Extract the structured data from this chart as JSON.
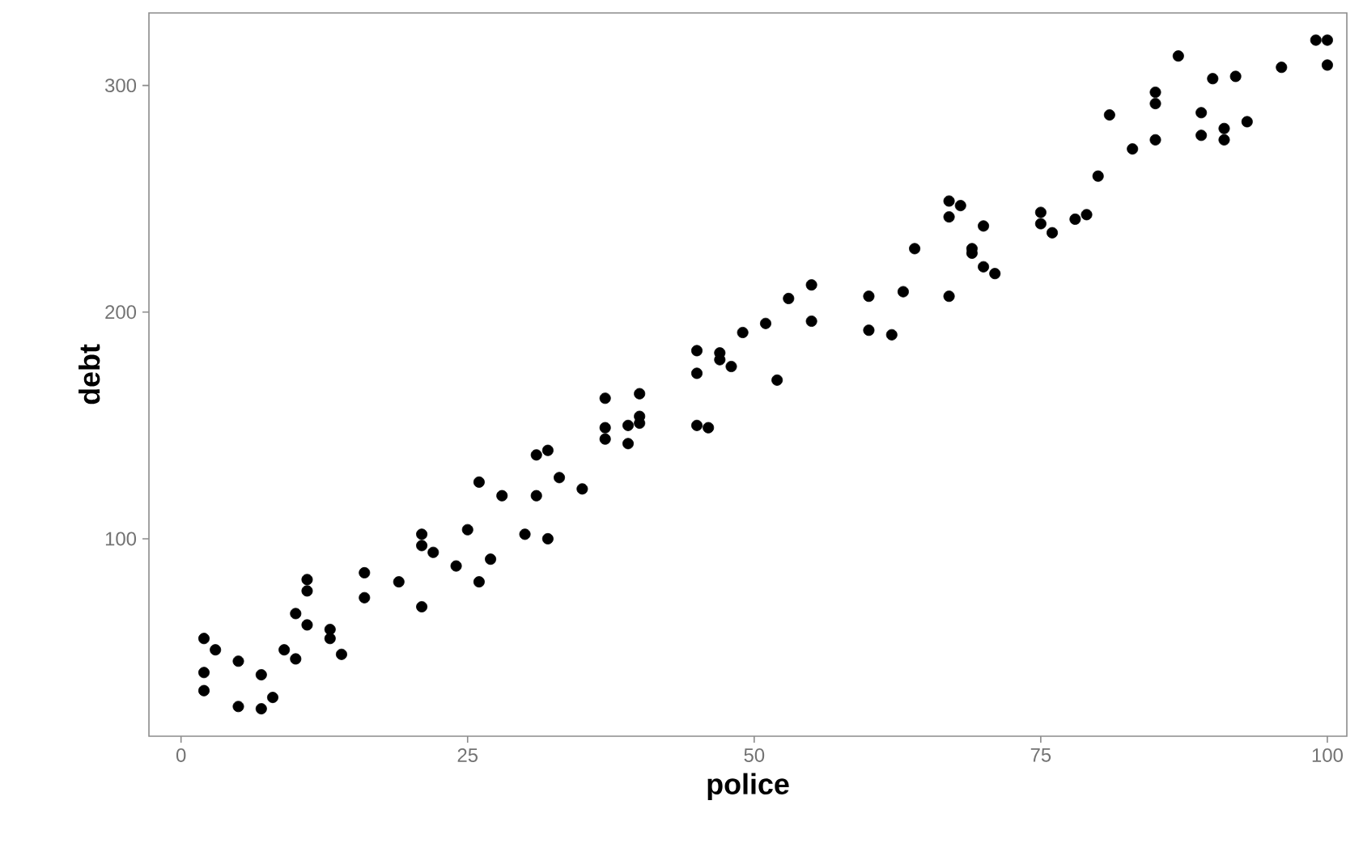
{
  "chart_data": {
    "type": "scatter",
    "xlabel": "**police**",
    "ylabel": "**debt**",
    "color": "#000000",
    "marker": "circle",
    "grid": false,
    "xlim": [
      -2.8,
      101.7
    ],
    "ylim": [
      12.9,
      332
    ],
    "xticks": [
      0,
      25,
      50,
      75,
      100
    ],
    "yticks": [
      100,
      200,
      300
    ],
    "x": [
      2,
      2,
      2,
      3,
      5,
      5,
      7,
      7,
      8,
      9,
      10,
      10,
      11,
      11,
      11,
      13,
      13,
      14,
      16,
      16,
      19,
      21,
      21,
      21,
      22,
      24,
      25,
      26,
      26,
      27,
      28,
      30,
      31,
      31,
      32,
      32,
      33,
      35,
      37,
      37,
      37,
      39,
      39,
      40,
      40,
      40,
      45,
      45,
      45,
      46,
      47,
      47,
      48,
      49,
      51,
      52,
      53,
      55,
      55,
      60,
      60,
      62,
      63,
      64,
      67,
      67,
      67,
      68,
      69,
      69,
      70,
      70,
      71,
      75,
      75,
      76,
      78,
      79,
      80,
      81,
      83,
      85,
      85,
      85,
      87,
      89,
      89,
      90,
      91,
      91,
      92,
      93,
      96,
      99,
      100,
      100
    ],
    "values": [
      56,
      41,
      33,
      51,
      46,
      26,
      40,
      25,
      30,
      51,
      67,
      47,
      82,
      77,
      62,
      60,
      56,
      49,
      85,
      74,
      81,
      102,
      97,
      70,
      94,
      88,
      104,
      125,
      81,
      91,
      119,
      102,
      137,
      119,
      139,
      100,
      127,
      122,
      162,
      149,
      144,
      150,
      142,
      164,
      154,
      151,
      183,
      173,
      150,
      149,
      182,
      179,
      176,
      191,
      195,
      170,
      206,
      212,
      196,
      207,
      192,
      190,
      209,
      228,
      249,
      242,
      207,
      247,
      228,
      226,
      238,
      220,
      217,
      244,
      239,
      235,
      241,
      243,
      260,
      287,
      272,
      297,
      292,
      276,
      313,
      288,
      278,
      303,
      281,
      276,
      304,
      284,
      308,
      320,
      320,
      309
    ]
  }
}
